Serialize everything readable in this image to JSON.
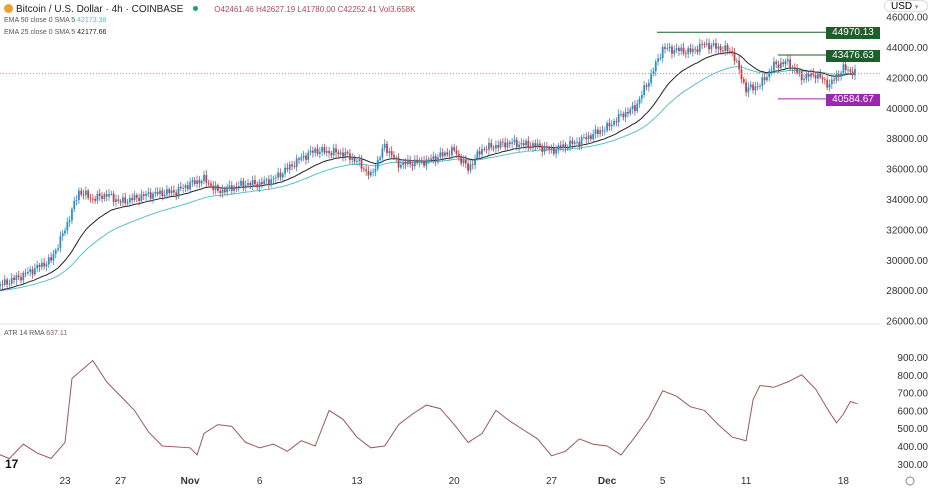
{
  "header": {
    "symbol": "Bitcoin / U.S. Dollar · 4h · COINBASE",
    "open": "O42461.46",
    "high": "H42627.19",
    "low": "L41780.00",
    "close": "C42252.41",
    "volume": "Vol3.658K",
    "currency": "USD"
  },
  "indicators": [
    {
      "label": "EMA 50 close 0 SMA 5",
      "value": "42173.38",
      "color": "#5bc0c8"
    },
    {
      "label": "EMA 25 close 0 SMA 5",
      "value": "42177.66",
      "color": "#222222"
    }
  ],
  "atr": {
    "label": "ATR 14 RMA",
    "value": "637.11",
    "color": "#9a5a5a"
  },
  "levels": [
    {
      "value": "44970.13",
      "color": "#1e5e2a"
    },
    {
      "value": "43476.63",
      "color": "#1e5e2a"
    },
    {
      "value": "40584.67",
      "color": "#9c27b0"
    }
  ],
  "chart_data": [
    {
      "type": "candlestick",
      "title": "Bitcoin / U.S. Dollar · 4h · COINBASE",
      "ylim": [
        26000,
        46000
      ],
      "yticks": [
        "46000.00",
        "44000.00",
        "42000.00",
        "40000.00",
        "38000.00",
        "36000.00",
        "34000.00",
        "32000.00",
        "30000.00",
        "28000.00",
        "26000.00"
      ],
      "xticks": [
        {
          "label": "23",
          "date": "2023-10-23"
        },
        {
          "label": "27",
          "date": "2023-10-27"
        },
        {
          "label": "Nov",
          "date": "2023-11-01"
        },
        {
          "label": "6",
          "date": "2023-11-06"
        },
        {
          "label": "13",
          "date": "2023-11-13"
        },
        {
          "label": "20",
          "date": "2023-11-20"
        },
        {
          "label": "27",
          "date": "2023-11-27"
        },
        {
          "label": "Dec",
          "date": "2023-12-01"
        },
        {
          "label": "5",
          "date": "2023-12-05"
        },
        {
          "label": "11",
          "date": "2023-12-11"
        },
        {
          "label": "18",
          "date": "2023-12-18"
        }
      ],
      "approx_daily_close": [
        [
          "2023-10-18",
          28200
        ],
        [
          "2023-10-20",
          29000
        ],
        [
          "2023-10-22",
          30000
        ],
        [
          "2023-10-23",
          32000
        ],
        [
          "2023-10-24",
          34500
        ],
        [
          "2023-10-25",
          34000
        ],
        [
          "2023-10-26",
          34300
        ],
        [
          "2023-10-27",
          33800
        ],
        [
          "2023-10-29",
          34300
        ],
        [
          "2023-10-31",
          34500
        ],
        [
          "2023-11-01",
          35000
        ],
        [
          "2023-11-02",
          35300
        ],
        [
          "2023-11-03",
          34500
        ],
        [
          "2023-11-05",
          35000
        ],
        [
          "2023-11-06",
          35000
        ],
        [
          "2023-11-07",
          35300
        ],
        [
          "2023-11-09",
          36700
        ],
        [
          "2023-11-10",
          37200
        ],
        [
          "2023-11-11",
          37100
        ],
        [
          "2023-11-12",
          37000
        ],
        [
          "2023-11-13",
          36500
        ],
        [
          "2023-11-14",
          35500
        ],
        [
          "2023-11-15",
          37500
        ],
        [
          "2023-11-16",
          36300
        ],
        [
          "2023-11-18",
          36500
        ],
        [
          "2023-11-20",
          37200
        ],
        [
          "2023-11-21",
          36000
        ],
        [
          "2023-11-22",
          37300
        ],
        [
          "2023-11-24",
          37700
        ],
        [
          "2023-11-26",
          37500
        ],
        [
          "2023-11-27",
          37200
        ],
        [
          "2023-11-29",
          37800
        ],
        [
          "2023-12-01",
          38700
        ],
        [
          "2023-12-02",
          39500
        ],
        [
          "2023-12-03",
          40000
        ],
        [
          "2023-12-04",
          41800
        ],
        [
          "2023-12-05",
          43900
        ],
        [
          "2023-12-07",
          43700
        ],
        [
          "2023-12-08",
          44200
        ],
        [
          "2023-12-10",
          43700
        ],
        [
          "2023-12-11",
          41200
        ],
        [
          "2023-12-12",
          41500
        ],
        [
          "2023-12-13",
          42800
        ],
        [
          "2023-12-14",
          43000
        ],
        [
          "2023-12-15",
          42000
        ],
        [
          "2023-12-16",
          42200
        ],
        [
          "2023-12-17",
          41500
        ],
        [
          "2023-12-18",
          42600
        ],
        [
          "2023-12-19",
          42250
        ]
      ],
      "horizontal_levels": [
        44970.13,
        43476.63,
        40584.67
      ],
      "current_price": 42252.41
    },
    {
      "type": "line",
      "title": "ATR 14 RMA",
      "ylim": [
        250,
        950
      ],
      "yticks": [
        "900.00",
        "800.00",
        "700.00",
        "600.00",
        "500.00",
        "400.00",
        "300.00"
      ],
      "series": [
        {
          "name": "ATR 14 RMA",
          "points": [
            [
              "2023-10-18",
              360
            ],
            [
              "2023-10-19",
              330
            ],
            [
              "2023-10-20",
              410
            ],
            [
              "2023-10-21",
              360
            ],
            [
              "2023-10-22",
              330
            ],
            [
              "2023-10-23",
              420
            ],
            [
              "2023-10-23T12",
              780
            ],
            [
              "2023-10-25",
              880
            ],
            [
              "2023-10-26",
              760
            ],
            [
              "2023-10-28",
              600
            ],
            [
              "2023-10-29",
              480
            ],
            [
              "2023-10-30",
              400
            ],
            [
              "2023-11-01",
              390
            ],
            [
              "2023-11-01T12",
              350
            ],
            [
              "2023-11-02",
              470
            ],
            [
              "2023-11-03",
              520
            ],
            [
              "2023-11-04",
              510
            ],
            [
              "2023-11-05",
              420
            ],
            [
              "2023-11-06",
              390
            ],
            [
              "2023-11-07",
              410
            ],
            [
              "2023-11-08",
              370
            ],
            [
              "2023-11-09",
              430
            ],
            [
              "2023-11-10",
              400
            ],
            [
              "2023-11-11",
              600
            ],
            [
              "2023-11-12",
              550
            ],
            [
              "2023-11-13",
              450
            ],
            [
              "2023-11-14",
              390
            ],
            [
              "2023-11-15",
              400
            ],
            [
              "2023-11-16",
              520
            ],
            [
              "2023-11-17",
              580
            ],
            [
              "2023-11-18",
              630
            ],
            [
              "2023-11-19",
              610
            ],
            [
              "2023-11-20",
              520
            ],
            [
              "2023-11-21",
              420
            ],
            [
              "2023-11-22",
              470
            ],
            [
              "2023-11-23",
              600
            ],
            [
              "2023-11-24",
              540
            ],
            [
              "2023-11-25",
              490
            ],
            [
              "2023-11-26",
              440
            ],
            [
              "2023-11-27",
              345
            ],
            [
              "2023-11-28",
              370
            ],
            [
              "2023-11-29",
              440
            ],
            [
              "2023-11-30",
              410
            ],
            [
              "2023-12-01",
              400
            ],
            [
              "2023-12-02",
              350
            ],
            [
              "2023-12-03",
              450
            ],
            [
              "2023-12-04",
              560
            ],
            [
              "2023-12-05",
              710
            ],
            [
              "2023-12-06",
              680
            ],
            [
              "2023-12-07",
              620
            ],
            [
              "2023-12-08",
              600
            ],
            [
              "2023-12-09",
              520
            ],
            [
              "2023-12-10",
              450
            ],
            [
              "2023-12-11",
              430
            ],
            [
              "2023-12-11T12",
              660
            ],
            [
              "2023-12-12",
              740
            ],
            [
              "2023-12-13",
              730
            ],
            [
              "2023-12-14",
              760
            ],
            [
              "2023-12-15",
              800
            ],
            [
              "2023-12-16",
              720
            ],
            [
              "2023-12-17",
              590
            ],
            [
              "2023-12-17T12",
              530
            ],
            [
              "2023-12-18",
              580
            ],
            [
              "2023-12-18T12",
              650
            ],
            [
              "2023-12-19",
              637
            ]
          ]
        }
      ]
    }
  ]
}
